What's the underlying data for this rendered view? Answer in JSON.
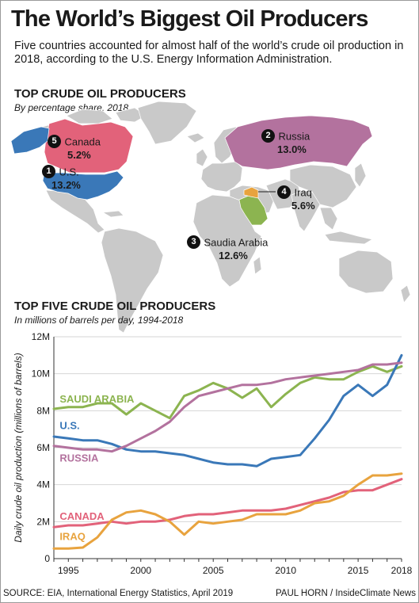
{
  "title": "The World’s Biggest Oil Producers",
  "intro": "Five countries accounted for almost half of the world’s crude oil production in 2018, according to the U.S. Energy Information Administration.",
  "map": {
    "title": "TOP CRUDE OIL PRODUCERS",
    "subtitle": "By percentage share, 2018",
    "producers": [
      {
        "rank": "1",
        "name": "U.S.",
        "share": "13.2%",
        "color": "#3a78b8"
      },
      {
        "rank": "2",
        "name": "Russia",
        "share": "13.0%",
        "color": "#b3729e"
      },
      {
        "rank": "3",
        "name": "Saudia Arabia",
        "share": "12.6%",
        "color": "#8cb450"
      },
      {
        "rank": "4",
        "name": "Iraq",
        "share": "5.6%",
        "color": "#e8a33e"
      },
      {
        "rank": "5",
        "name": "Canada",
        "share": "5.2%",
        "color": "#e2627a"
      }
    ]
  },
  "chart_data": {
    "type": "line",
    "title": "TOP FIVE CRUDE OIL PRODUCERS",
    "subtitle": "In millions of barrels per day, 1994-2018",
    "ylabel": "Daily crude oil production (millions of barrels)",
    "xlim": [
      1994,
      2018
    ],
    "ylim": [
      0,
      12
    ],
    "x_ticks": [
      "1995",
      "2000",
      "2005",
      "2010",
      "2015",
      "2018"
    ],
    "x_tick_values": [
      1995,
      2000,
      2005,
      2010,
      2015,
      2018
    ],
    "y_ticks": [
      "0",
      "2M",
      "4M",
      "6M",
      "8M",
      "10M",
      "12M"
    ],
    "y_tick_values": [
      0,
      2,
      4,
      6,
      8,
      10,
      12
    ],
    "x": [
      1994,
      1995,
      1996,
      1997,
      1998,
      1999,
      2000,
      2001,
      2002,
      2003,
      2004,
      2005,
      2006,
      2007,
      2008,
      2009,
      2010,
      2011,
      2012,
      2013,
      2014,
      2015,
      2016,
      2017,
      2018
    ],
    "series": [
      {
        "name": "SAUDI ARABIA",
        "color": "#8cb450",
        "values": [
          8.1,
          8.2,
          8.2,
          8.4,
          8.4,
          7.8,
          8.4,
          8.0,
          7.6,
          8.8,
          9.1,
          9.5,
          9.2,
          8.7,
          9.2,
          8.2,
          8.9,
          9.5,
          9.8,
          9.7,
          9.7,
          10.1,
          10.4,
          10.1,
          10.4
        ]
      },
      {
        "name": "U.S.",
        "color": "#3a78b8",
        "values": [
          6.6,
          6.5,
          6.4,
          6.4,
          6.2,
          5.9,
          5.8,
          5.8,
          5.7,
          5.6,
          5.4,
          5.2,
          5.1,
          5.1,
          5.0,
          5.4,
          5.5,
          5.6,
          6.5,
          7.5,
          8.8,
          9.4,
          8.8,
          9.4,
          11.0
        ]
      },
      {
        "name": "RUSSIA",
        "color": "#b3729e",
        "values": [
          6.1,
          6.0,
          5.9,
          5.9,
          5.8,
          6.1,
          6.5,
          6.9,
          7.4,
          8.2,
          8.8,
          9.0,
          9.2,
          9.4,
          9.4,
          9.5,
          9.7,
          9.8,
          9.9,
          10.0,
          10.1,
          10.2,
          10.5,
          10.5,
          10.6
        ]
      },
      {
        "name": "CANADA",
        "color": "#e2627a",
        "values": [
          1.7,
          1.8,
          1.8,
          1.9,
          2.0,
          1.9,
          2.0,
          2.0,
          2.1,
          2.3,
          2.4,
          2.4,
          2.5,
          2.6,
          2.6,
          2.6,
          2.7,
          2.9,
          3.1,
          3.3,
          3.6,
          3.7,
          3.7,
          4.0,
          4.3
        ]
      },
      {
        "name": "IRAQ",
        "color": "#e8a33e",
        "values": [
          0.55,
          0.55,
          0.6,
          1.15,
          2.1,
          2.5,
          2.6,
          2.4,
          2.0,
          1.3,
          2.0,
          1.9,
          2.0,
          2.1,
          2.4,
          2.4,
          2.4,
          2.6,
          3.0,
          3.1,
          3.4,
          4.0,
          4.5,
          4.5,
          4.6
        ]
      }
    ]
  },
  "source": "SOURCE: EIA, International Energy Statistics, April 2019",
  "credit": "PAUL HORN / InsideClimate News"
}
